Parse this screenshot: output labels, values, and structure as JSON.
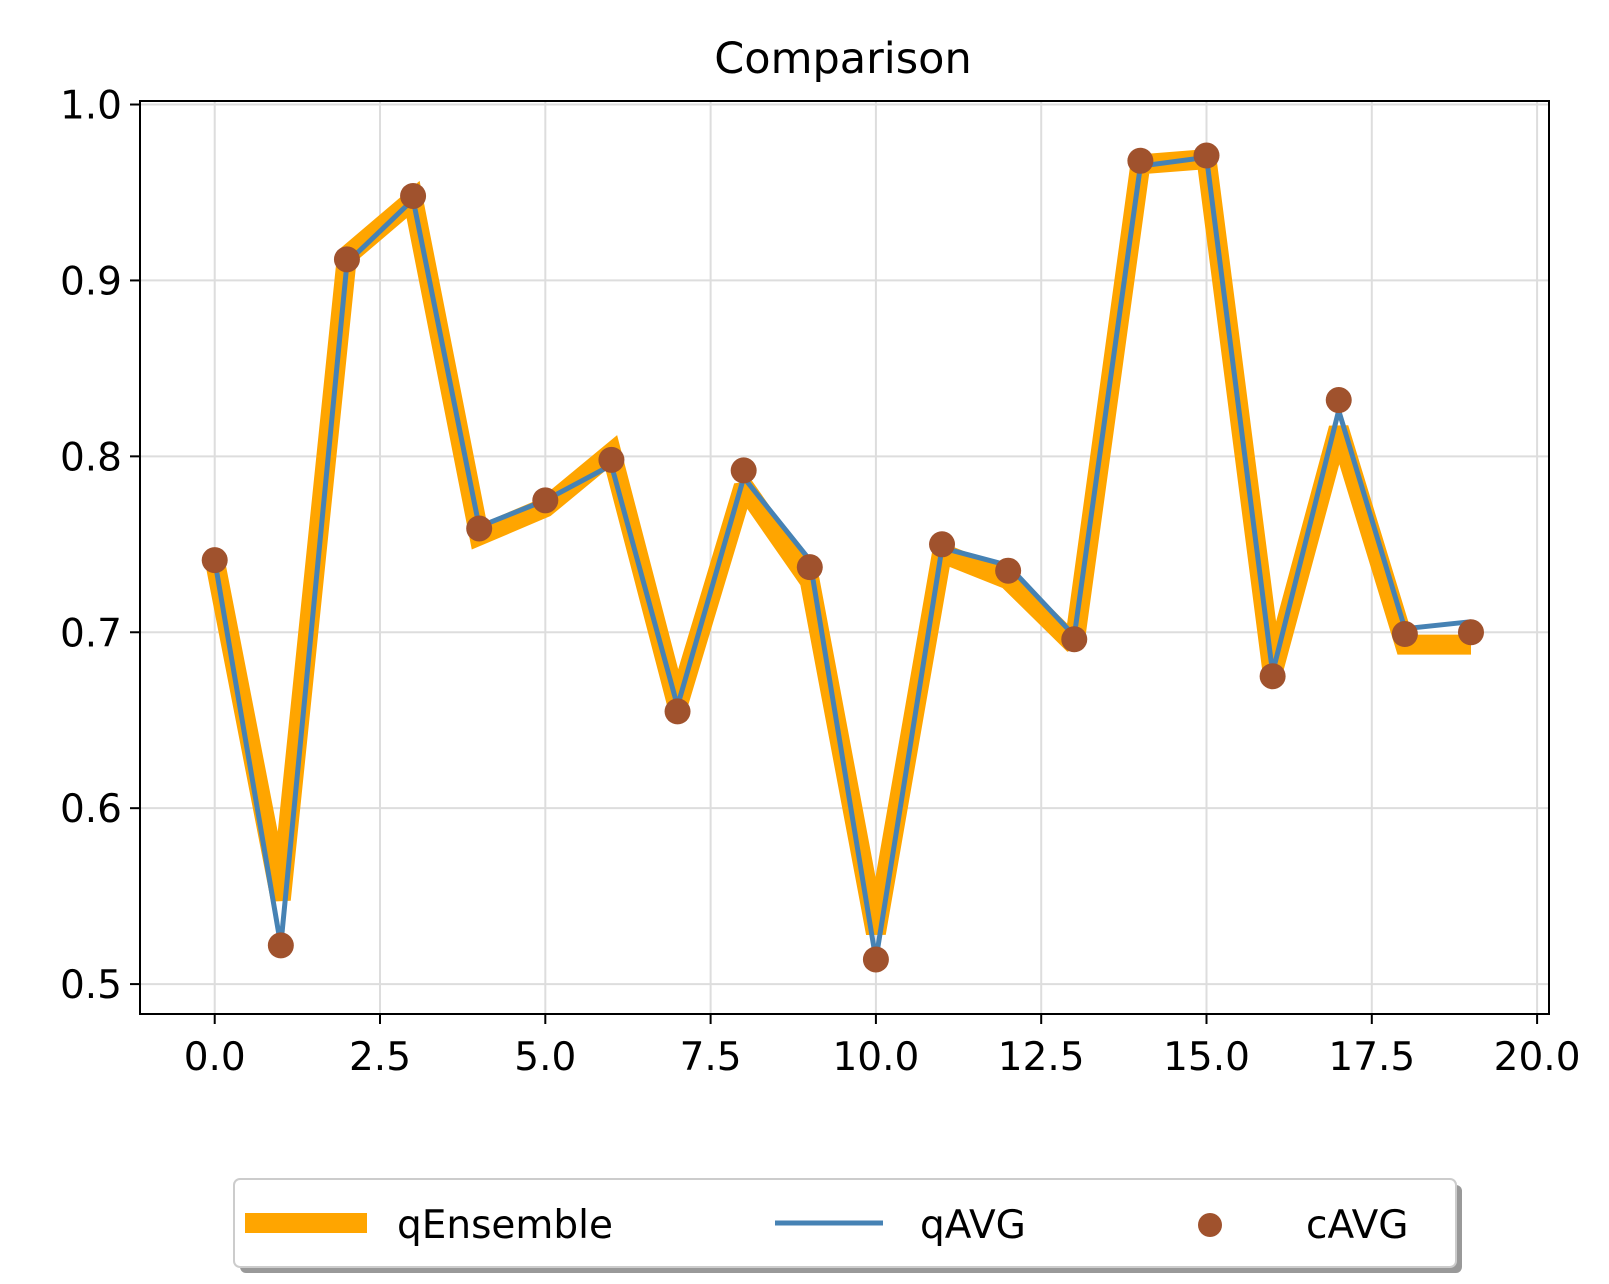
{
  "chart_data": {
    "type": "line",
    "title": "Comparison",
    "xlabel": "",
    "ylabel": "",
    "xlim": [
      -1.13,
      20.18
    ],
    "ylim": [
      0.483,
      1.002
    ],
    "x_ticks": [
      0.0,
      2.5,
      5.0,
      7.5,
      10.0,
      12.5,
      15.0,
      17.5,
      20.0
    ],
    "x_tick_labels": [
      "0.0",
      "2.5",
      "5.0",
      "7.5",
      "10.0",
      "12.5",
      "15.0",
      "17.5",
      "20.0"
    ],
    "y_ticks": [
      0.5,
      0.6,
      0.7,
      0.8,
      0.9,
      1.0
    ],
    "y_tick_labels": [
      "0.5",
      "0.6",
      "0.7",
      "0.8",
      "0.9",
      "1.0"
    ],
    "grid": true,
    "legend_placement": "below plot, centered",
    "x": [
      0,
      1,
      2,
      3,
      4,
      5,
      6,
      7,
      8,
      9,
      10,
      11,
      12,
      13,
      14,
      15,
      16,
      17,
      18,
      19
    ],
    "series": [
      {
        "name": "qEnsemble",
        "kind": "line-thick",
        "color": "#FFA500",
        "values": [
          0.741,
          0.548,
          0.914,
          0.946,
          0.755,
          0.771,
          0.802,
          0.658,
          0.783,
          0.729,
          0.529,
          0.745,
          0.73,
          0.693,
          0.966,
          0.969,
          0.677,
          0.816,
          0.693,
          0.693
        ]
      },
      {
        "name": "qAVG",
        "kind": "line",
        "color": "#4682B4",
        "values": [
          0.741,
          0.522,
          0.91,
          0.946,
          0.76,
          0.775,
          0.795,
          0.658,
          0.788,
          0.741,
          0.514,
          0.748,
          0.738,
          0.698,
          0.965,
          0.97,
          0.677,
          0.826,
          0.702,
          0.706
        ]
      },
      {
        "name": "cAVG",
        "kind": "scatter",
        "color": "#A0522D",
        "values": [
          0.741,
          0.522,
          0.912,
          0.948,
          0.759,
          0.775,
          0.798,
          0.655,
          0.792,
          0.737,
          0.514,
          0.75,
          0.735,
          0.696,
          0.968,
          0.971,
          0.675,
          0.832,
          0.699,
          0.7
        ]
      }
    ]
  }
}
